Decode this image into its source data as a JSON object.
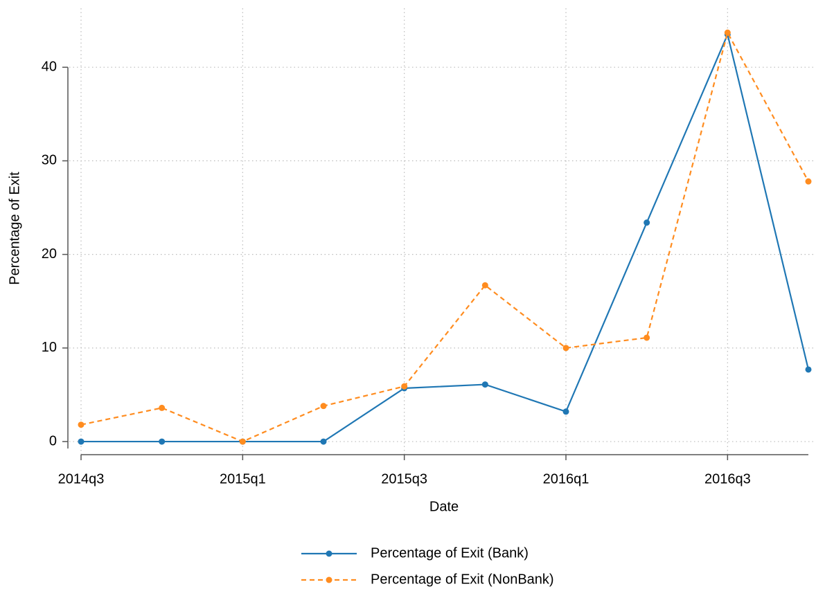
{
  "chart_data": {
    "type": "line",
    "x_label": "Date",
    "y_label": "Percentage of Exit",
    "categories": [
      "2014q3",
      null,
      "2015q1",
      null,
      "2015q3",
      null,
      "2016q1",
      null,
      "2016q3",
      null
    ],
    "series": [
      {
        "name": "Percentage of Exit (Bank)",
        "color": "#1f77b4",
        "dash": false,
        "values": [
          0,
          0,
          0,
          0,
          5.7,
          6.1,
          3.2,
          23.4,
          43.5,
          7.7
        ]
      },
      {
        "name": "Percentage of Exit (NonBank)",
        "color": "#ff8c1f",
        "dash": true,
        "values": [
          1.8,
          3.6,
          0,
          3.8,
          5.9,
          16.7,
          10,
          11.1,
          43.7,
          27.8
        ]
      }
    ],
    "ylim": [
      -1.4,
      46.3
    ],
    "yticks": [
      0,
      10,
      20,
      30,
      40
    ],
    "grid": true,
    "legend": "bottom"
  }
}
